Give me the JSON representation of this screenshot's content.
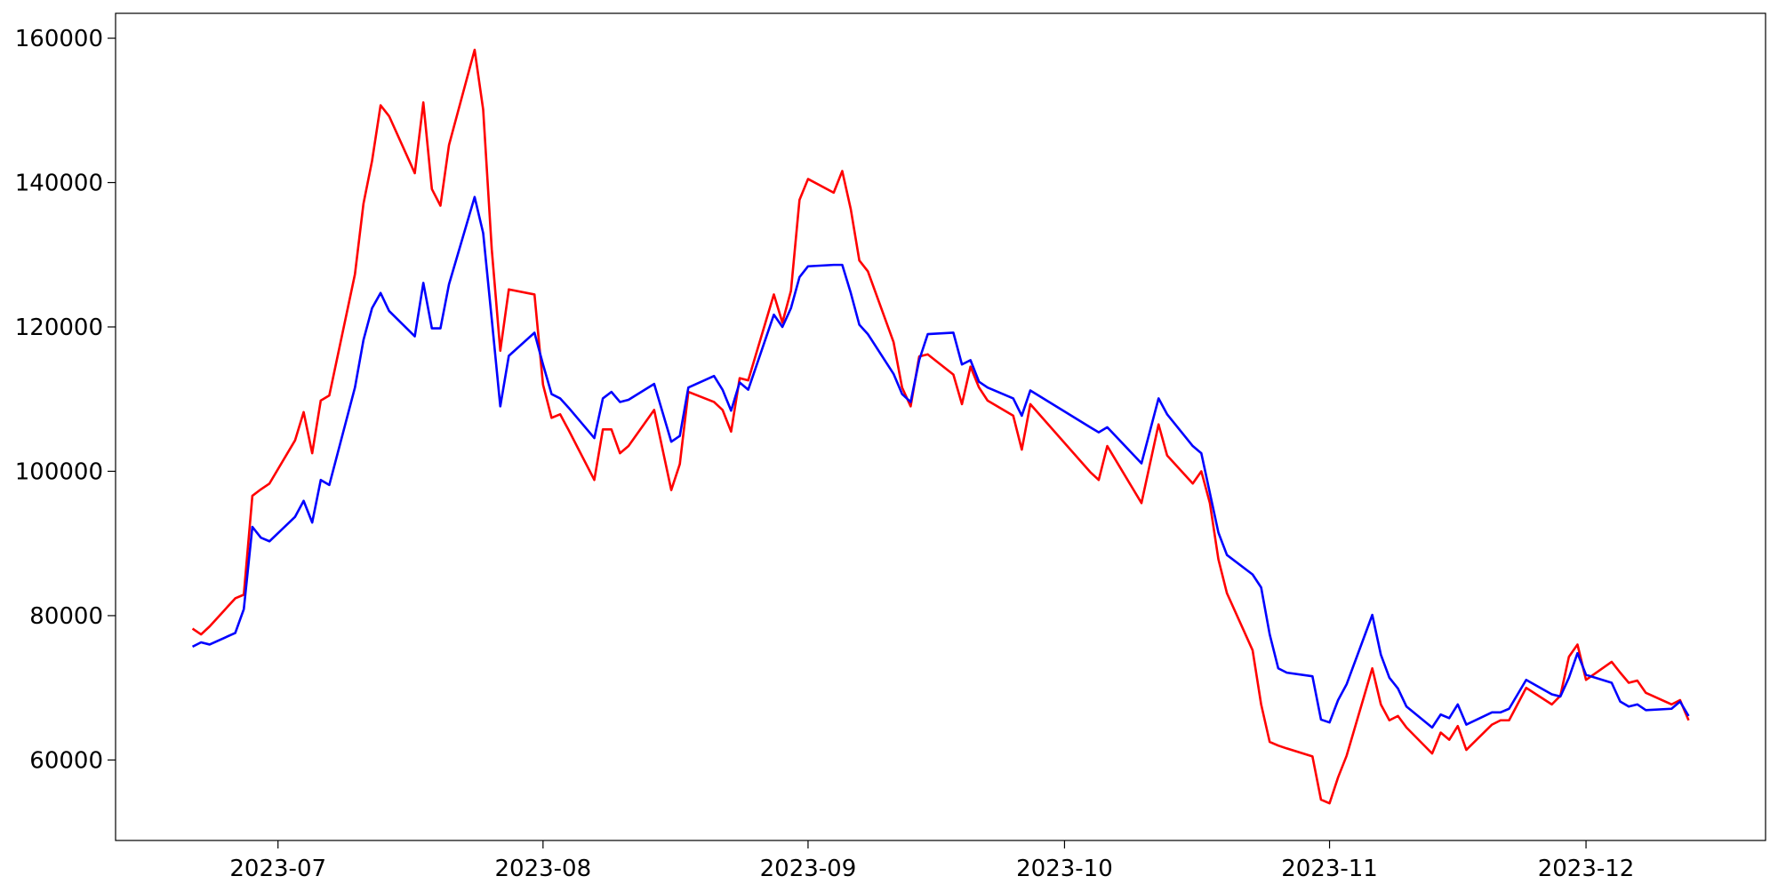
{
  "chart_data": {
    "type": "line",
    "x": [
      "2023-06-21",
      "2023-06-22",
      "2023-06-23",
      "2023-06-26",
      "2023-06-27",
      "2023-06-28",
      "2023-06-29",
      "2023-06-30",
      "2023-07-03",
      "2023-07-04",
      "2023-07-05",
      "2023-07-06",
      "2023-07-07",
      "2023-07-10",
      "2023-07-11",
      "2023-07-12",
      "2023-07-13",
      "2023-07-14",
      "2023-07-17",
      "2023-07-18",
      "2023-07-19",
      "2023-07-20",
      "2023-07-21",
      "2023-07-24",
      "2023-07-25",
      "2023-07-26",
      "2023-07-27",
      "2023-07-28",
      "2023-07-31",
      "2023-08-01",
      "2023-08-02",
      "2023-08-03",
      "2023-08-04",
      "2023-08-07",
      "2023-08-08",
      "2023-08-09",
      "2023-08-10",
      "2023-08-11",
      "2023-08-14",
      "2023-08-16",
      "2023-08-17",
      "2023-08-18",
      "2023-08-21",
      "2023-08-22",
      "2023-08-23",
      "2023-08-24",
      "2023-08-25",
      "2023-08-28",
      "2023-08-29",
      "2023-08-30",
      "2023-08-31",
      "2023-09-01",
      "2023-09-04",
      "2023-09-05",
      "2023-09-06",
      "2023-09-07",
      "2023-09-08",
      "2023-09-11",
      "2023-09-12",
      "2023-09-13",
      "2023-09-14",
      "2023-09-15",
      "2023-09-18",
      "2023-09-19",
      "2023-09-20",
      "2023-09-21",
      "2023-09-22",
      "2023-09-25",
      "2023-09-26",
      "2023-09-27",
      "2023-10-04",
      "2023-10-05",
      "2023-10-06",
      "2023-10-10",
      "2023-10-12",
      "2023-10-13",
      "2023-10-16",
      "2023-10-17",
      "2023-10-18",
      "2023-10-19",
      "2023-10-20",
      "2023-10-23",
      "2023-10-24",
      "2023-10-25",
      "2023-10-26",
      "2023-10-27",
      "2023-10-30",
      "2023-10-31",
      "2023-11-01",
      "2023-11-02",
      "2023-11-03",
      "2023-11-06",
      "2023-11-07",
      "2023-11-08",
      "2023-11-09",
      "2023-11-10",
      "2023-11-13",
      "2023-11-14",
      "2023-11-15",
      "2023-11-16",
      "2023-11-17",
      "2023-11-20",
      "2023-11-21",
      "2023-11-22",
      "2023-11-24",
      "2023-11-27",
      "2023-11-28",
      "2023-11-29",
      "2023-11-30",
      "2023-12-01",
      "2023-12-04",
      "2023-12-05",
      "2023-12-06",
      "2023-12-07",
      "2023-12-08",
      "2023-12-11",
      "2023-12-12",
      "2023-12-13"
    ],
    "series": [
      {
        "color": "#ff0000",
        "values": [
          78200,
          77400,
          78500,
          82400,
          82900,
          96600,
          97500,
          98300,
          104300,
          108200,
          102500,
          109800,
          110500,
          127300,
          137100,
          143000,
          150700,
          149200,
          141300,
          151100,
          139100,
          136800,
          145200,
          158400,
          150100,
          130800,
          116700,
          125200,
          124500,
          112000,
          107400,
          107900,
          105700,
          98800,
          105800,
          105800,
          102500,
          103500,
          108500,
          97400,
          101000,
          111000,
          109600,
          108500,
          105500,
          112900,
          112600,
          124500,
          120600,
          125000,
          137600,
          140500,
          138600,
          141600,
          136300,
          129200,
          127700,
          117900,
          111600,
          109000,
          115900,
          116200,
          113400,
          109300,
          114500,
          111600,
          109800,
          107700,
          103000,
          109300,
          99900,
          98800,
          103500,
          95600,
          106500,
          102200,
          98300,
          100000,
          95600,
          87800,
          83100,
          75200,
          67700,
          62500,
          62000,
          61600,
          60500,
          54500,
          54000,
          57600,
          60600,
          72700,
          67700,
          65500,
          66100,
          64500,
          60900,
          63800,
          62800,
          64700,
          61400,
          64900,
          65500,
          65500,
          70000,
          67700,
          68900,
          74300,
          76000,
          71100,
          73600,
          72100,
          70700,
          71000,
          69300,
          67700,
          68300,
          65500
        ]
      },
      {
        "color": "#0000ff",
        "values": [
          75700,
          76300,
          76000,
          77600,
          80900,
          92300,
          90800,
          90300,
          93700,
          95900,
          92900,
          98800,
          98100,
          111600,
          118200,
          122600,
          124700,
          122200,
          118700,
          126100,
          119800,
          119800,
          125900,
          138000,
          133000,
          121100,
          109000,
          116000,
          119200,
          114800,
          110700,
          110100,
          108800,
          104600,
          110100,
          111000,
          109600,
          109900,
          112100,
          104100,
          104900,
          111600,
          113200,
          111300,
          108400,
          112300,
          111300,
          121700,
          120000,
          122600,
          126900,
          128400,
          128600,
          128600,
          124700,
          120300,
          119000,
          113500,
          110700,
          109600,
          115400,
          119000,
          119200,
          114800,
          115400,
          112400,
          111600,
          110100,
          107700,
          111200,
          106100,
          105400,
          106100,
          101100,
          110100,
          107900,
          103500,
          102500,
          97000,
          91500,
          88400,
          85700,
          83900,
          77400,
          72700,
          72100,
          71600,
          65600,
          65200,
          68300,
          70500,
          80100,
          74600,
          71400,
          69900,
          67400,
          64500,
          66300,
          65800,
          67700,
          64900,
          66600,
          66600,
          67100,
          71100,
          69100,
          68800,
          71400,
          74800,
          71800,
          70700,
          68100,
          67400,
          67700,
          66900,
          67100,
          68100,
          66100
        ]
      }
    ],
    "xlim": [
      "2023-06-12",
      "2023-12-22"
    ],
    "xticks": [
      {
        "value": "2023-07-01",
        "label": "2023-07"
      },
      {
        "value": "2023-08-01",
        "label": "2023-08"
      },
      {
        "value": "2023-09-01",
        "label": "2023-09"
      },
      {
        "value": "2023-10-01",
        "label": "2023-10"
      },
      {
        "value": "2023-11-01",
        "label": "2023-11"
      },
      {
        "value": "2023-12-01",
        "label": "2023-12"
      }
    ],
    "ylim": [
      48850,
      163450
    ],
    "yticks": [
      60000,
      80000,
      100000,
      120000,
      140000,
      160000
    ],
    "grid": false
  }
}
